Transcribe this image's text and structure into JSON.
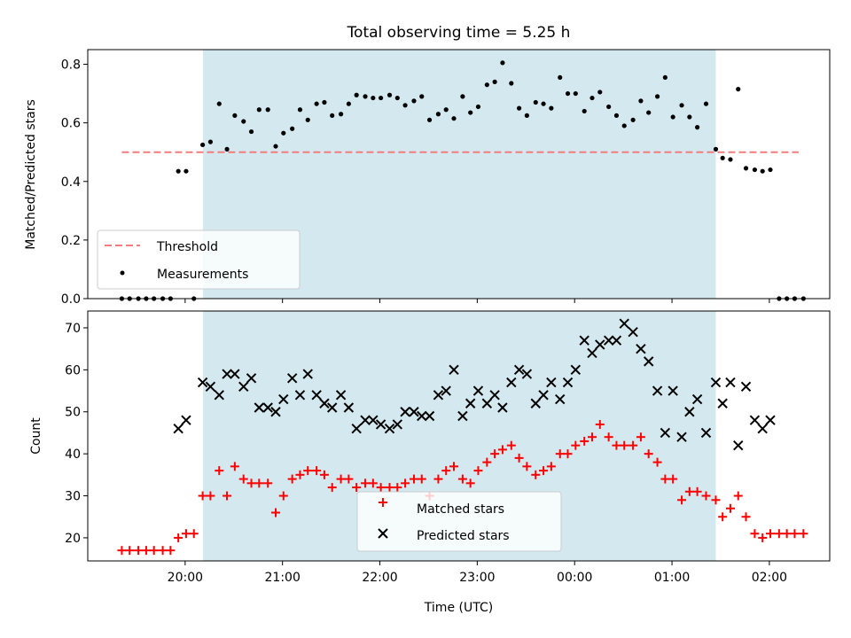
{
  "chart_data": [
    {
      "type": "scatter",
      "title": "Total observing time = 5.25 h",
      "xlabel": "",
      "ylabel": "Matched/Predicted stars",
      "ylim": [
        0,
        0.85
      ],
      "yticks": [
        "0.0",
        "0.2",
        "0.4",
        "0.6",
        "0.8"
      ],
      "xlim_hours": [
        19.0,
        26.62
      ],
      "shaded_span_hours": [
        20.183,
        25.45
      ],
      "shade_color": "#d3e9ef",
      "legend_position": "lower-left",
      "threshold": {
        "name": "Threshold",
        "y": 0.5,
        "x_range_hours": [
          19.35,
          26.3
        ],
        "color": "#f47c7c",
        "style": "dashed"
      },
      "series": [
        {
          "name": "Measurements",
          "color": "#000000",
          "marker": "dot",
          "points": [
            [
              19.35,
              0.0
            ],
            [
              19.43,
              0.0
            ],
            [
              19.52,
              0.0
            ],
            [
              19.6,
              0.0
            ],
            [
              19.68,
              0.0
            ],
            [
              19.77,
              0.0
            ],
            [
              19.85,
              0.0
            ],
            [
              19.93,
              0.435
            ],
            [
              20.01,
              0.435
            ],
            [
              20.09,
              0.0
            ],
            [
              20.18,
              0.525
            ],
            [
              20.26,
              0.535
            ],
            [
              20.35,
              0.665
            ],
            [
              20.43,
              0.51
            ],
            [
              20.51,
              0.625
            ],
            [
              20.6,
              0.605
            ],
            [
              20.68,
              0.57
            ],
            [
              20.76,
              0.645
            ],
            [
              20.85,
              0.645
            ],
            [
              20.93,
              0.52
            ],
            [
              21.01,
              0.565
            ],
            [
              21.1,
              0.58
            ],
            [
              21.18,
              0.645
            ],
            [
              21.26,
              0.61
            ],
            [
              21.35,
              0.665
            ],
            [
              21.43,
              0.67
            ],
            [
              21.51,
              0.625
            ],
            [
              21.6,
              0.63
            ],
            [
              21.68,
              0.665
            ],
            [
              21.76,
              0.695
            ],
            [
              21.85,
              0.69
            ],
            [
              21.93,
              0.685
            ],
            [
              22.01,
              0.685
            ],
            [
              22.1,
              0.695
            ],
            [
              22.18,
              0.685
            ],
            [
              22.26,
              0.66
            ],
            [
              22.35,
              0.675
            ],
            [
              22.43,
              0.69
            ],
            [
              22.51,
              0.61
            ],
            [
              22.6,
              0.63
            ],
            [
              22.68,
              0.645
            ],
            [
              22.76,
              0.615
            ],
            [
              22.85,
              0.69
            ],
            [
              22.93,
              0.635
            ],
            [
              23.01,
              0.655
            ],
            [
              23.1,
              0.73
            ],
            [
              23.18,
              0.74
            ],
            [
              23.26,
              0.805
            ],
            [
              23.35,
              0.735
            ],
            [
              23.43,
              0.65
            ],
            [
              23.51,
              0.625
            ],
            [
              23.6,
              0.67
            ],
            [
              23.68,
              0.665
            ],
            [
              23.76,
              0.65
            ],
            [
              23.85,
              0.755
            ],
            [
              23.93,
              0.7
            ],
            [
              24.01,
              0.7
            ],
            [
              24.1,
              0.64
            ],
            [
              24.18,
              0.685
            ],
            [
              24.26,
              0.705
            ],
            [
              24.35,
              0.655
            ],
            [
              24.43,
              0.625
            ],
            [
              24.51,
              0.59
            ],
            [
              24.6,
              0.61
            ],
            [
              24.68,
              0.675
            ],
            [
              24.76,
              0.635
            ],
            [
              24.85,
              0.69
            ],
            [
              24.93,
              0.755
            ],
            [
              25.01,
              0.62
            ],
            [
              25.1,
              0.66
            ],
            [
              25.18,
              0.62
            ],
            [
              25.26,
              0.585
            ],
            [
              25.35,
              0.665
            ],
            [
              25.45,
              0.51
            ],
            [
              25.52,
              0.48
            ],
            [
              25.6,
              0.475
            ],
            [
              25.68,
              0.715
            ],
            [
              25.76,
              0.445
            ],
            [
              25.85,
              0.44
            ],
            [
              25.93,
              0.435
            ],
            [
              26.01,
              0.44
            ],
            [
              26.1,
              0.0
            ],
            [
              26.18,
              0.0
            ],
            [
              26.26,
              0.0
            ],
            [
              26.35,
              0.0
            ]
          ]
        }
      ]
    },
    {
      "type": "scatter",
      "title": "",
      "xlabel": "Time (UTC)",
      "ylabel": "Count",
      "ylim": [
        14.5,
        74
      ],
      "yticks": [
        "20",
        "30",
        "40",
        "50",
        "60",
        "70"
      ],
      "xticks": [
        "20:00",
        "21:00",
        "22:00",
        "23:00",
        "00:00",
        "01:00",
        "02:00"
      ],
      "xlim_hours": [
        19.0,
        26.62
      ],
      "shaded_span_hours": [
        20.183,
        25.45
      ],
      "legend_position": "lower-center",
      "series": [
        {
          "name": "Matched stars",
          "color": "#ff0000",
          "marker": "plus",
          "points": [
            [
              19.35,
              17
            ],
            [
              19.43,
              17
            ],
            [
              19.52,
              17
            ],
            [
              19.6,
              17
            ],
            [
              19.68,
              17
            ],
            [
              19.77,
              17
            ],
            [
              19.85,
              17
            ],
            [
              19.93,
              20
            ],
            [
              20.01,
              21
            ],
            [
              20.09,
              21
            ],
            [
              20.18,
              30
            ],
            [
              20.26,
              30
            ],
            [
              20.35,
              36
            ],
            [
              20.43,
              30
            ],
            [
              20.51,
              37
            ],
            [
              20.6,
              34
            ],
            [
              20.68,
              33
            ],
            [
              20.76,
              33
            ],
            [
              20.85,
              33
            ],
            [
              20.93,
              26
            ],
            [
              21.01,
              30
            ],
            [
              21.1,
              34
            ],
            [
              21.18,
              35
            ],
            [
              21.26,
              36
            ],
            [
              21.35,
              36
            ],
            [
              21.43,
              35
            ],
            [
              21.51,
              32
            ],
            [
              21.6,
              34
            ],
            [
              21.68,
              34
            ],
            [
              21.76,
              32
            ],
            [
              21.85,
              33
            ],
            [
              21.93,
              33
            ],
            [
              22.01,
              32
            ],
            [
              22.1,
              32
            ],
            [
              22.18,
              32
            ],
            [
              22.26,
              33
            ],
            [
              22.35,
              34
            ],
            [
              22.43,
              34
            ],
            [
              22.51,
              30
            ],
            [
              22.6,
              34
            ],
            [
              22.68,
              36
            ],
            [
              22.76,
              37
            ],
            [
              22.85,
              34
            ],
            [
              22.93,
              33
            ],
            [
              23.01,
              36
            ],
            [
              23.1,
              38
            ],
            [
              23.18,
              40
            ],
            [
              23.26,
              41
            ],
            [
              23.35,
              42
            ],
            [
              23.43,
              39
            ],
            [
              23.51,
              37
            ],
            [
              23.6,
              35
            ],
            [
              23.68,
              36
            ],
            [
              23.76,
              37
            ],
            [
              23.85,
              40
            ],
            [
              23.93,
              40
            ],
            [
              24.01,
              42
            ],
            [
              24.1,
              43
            ],
            [
              24.18,
              44
            ],
            [
              24.26,
              47
            ],
            [
              24.35,
              44
            ],
            [
              24.43,
              42
            ],
            [
              24.51,
              42
            ],
            [
              24.6,
              42
            ],
            [
              24.68,
              44
            ],
            [
              24.76,
              40
            ],
            [
              24.85,
              38
            ],
            [
              24.93,
              34
            ],
            [
              25.01,
              34
            ],
            [
              25.1,
              29
            ],
            [
              25.18,
              31
            ],
            [
              25.26,
              31
            ],
            [
              25.35,
              30
            ],
            [
              25.45,
              29
            ],
            [
              25.52,
              25
            ],
            [
              25.6,
              27
            ],
            [
              25.68,
              30
            ],
            [
              25.76,
              25
            ],
            [
              25.85,
              21
            ],
            [
              25.93,
              20
            ],
            [
              26.01,
              21
            ],
            [
              26.1,
              21
            ],
            [
              26.18,
              21
            ],
            [
              26.26,
              21
            ],
            [
              26.35,
              21
            ]
          ]
        },
        {
          "name": "Predicted stars",
          "color": "#000000",
          "marker": "x",
          "points": [
            [
              19.93,
              46
            ],
            [
              20.01,
              48
            ],
            [
              20.18,
              57
            ],
            [
              20.26,
              56
            ],
            [
              20.35,
              54
            ],
            [
              20.43,
              59
            ],
            [
              20.51,
              59
            ],
            [
              20.6,
              56
            ],
            [
              20.68,
              58
            ],
            [
              20.76,
              51
            ],
            [
              20.85,
              51
            ],
            [
              20.93,
              50
            ],
            [
              21.01,
              53
            ],
            [
              21.1,
              58
            ],
            [
              21.18,
              54
            ],
            [
              21.26,
              59
            ],
            [
              21.35,
              54
            ],
            [
              21.43,
              52
            ],
            [
              21.51,
              51
            ],
            [
              21.6,
              54
            ],
            [
              21.68,
              51
            ],
            [
              21.76,
              46
            ],
            [
              21.85,
              48
            ],
            [
              21.93,
              48
            ],
            [
              22.01,
              47
            ],
            [
              22.1,
              46
            ],
            [
              22.18,
              47
            ],
            [
              22.26,
              50
            ],
            [
              22.35,
              50
            ],
            [
              22.43,
              49
            ],
            [
              22.51,
              49
            ],
            [
              22.6,
              54
            ],
            [
              22.68,
              55
            ],
            [
              22.76,
              60
            ],
            [
              22.85,
              49
            ],
            [
              22.93,
              52
            ],
            [
              23.01,
              55
            ],
            [
              23.1,
              52
            ],
            [
              23.18,
              54
            ],
            [
              23.26,
              51
            ],
            [
              23.35,
              57
            ],
            [
              23.43,
              60
            ],
            [
              23.51,
              59
            ],
            [
              23.6,
              52
            ],
            [
              23.68,
              54
            ],
            [
              23.76,
              57
            ],
            [
              23.85,
              53
            ],
            [
              23.93,
              57
            ],
            [
              24.01,
              60
            ],
            [
              24.1,
              67
            ],
            [
              24.18,
              64
            ],
            [
              24.26,
              66
            ],
            [
              24.35,
              67
            ],
            [
              24.43,
              67
            ],
            [
              24.51,
              71
            ],
            [
              24.6,
              69
            ],
            [
              24.68,
              65
            ],
            [
              24.76,
              62
            ],
            [
              24.85,
              55
            ],
            [
              24.93,
              45
            ],
            [
              25.01,
              55
            ],
            [
              25.1,
              44
            ],
            [
              25.18,
              50
            ],
            [
              25.26,
              53
            ],
            [
              25.35,
              45
            ],
            [
              25.45,
              57
            ],
            [
              25.52,
              52
            ],
            [
              25.6,
              57
            ],
            [
              25.68,
              42
            ],
            [
              25.76,
              56
            ],
            [
              25.85,
              48
            ],
            [
              25.93,
              46
            ],
            [
              26.01,
              48
            ]
          ]
        }
      ]
    }
  ]
}
